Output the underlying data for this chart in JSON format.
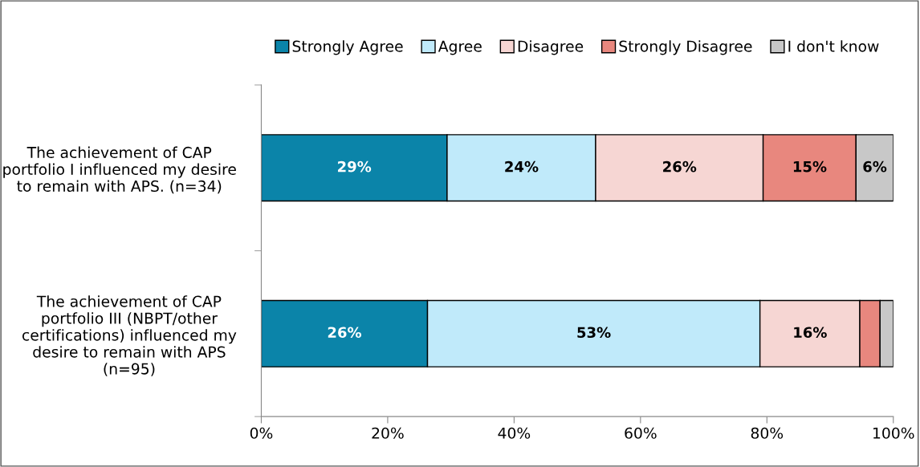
{
  "chart_data": {
    "type": "bar",
    "orientation": "horizontal",
    "stacked": true,
    "categories": [
      "The achievement of CAP portfolio I influenced my desire to remain with APS. (n=34)",
      "The achievement of CAP portfolio III (NBPT/other certifications) influenced my desire to remain with APS (n=95)"
    ],
    "series": [
      {
        "name": "Strongly Agree",
        "color": "#0b84a9",
        "values": [
          29.4,
          26.3
        ],
        "value_labels": [
          "29%",
          "26%"
        ]
      },
      {
        "name": "Agree",
        "color": "#c0eafa",
        "values": [
          23.5,
          52.6
        ],
        "value_labels": [
          "24%",
          "53%"
        ]
      },
      {
        "name": "Disagree",
        "color": "#f6d6d3",
        "values": [
          26.5,
          15.8
        ],
        "value_labels": [
          "26%",
          "16%"
        ]
      },
      {
        "name": "Strongly Disagree",
        "color": "#e8877e",
        "values": [
          14.7,
          3.2
        ],
        "value_labels": [
          "15%",
          null
        ]
      },
      {
        "name": "I don't know",
        "color": "#c8c8c8",
        "values": [
          5.9,
          2.1
        ],
        "value_labels": [
          "6%",
          null
        ]
      }
    ],
    "xlim": [
      0,
      100
    ],
    "xticks": [
      {
        "value": 0,
        "label": "0%"
      },
      {
        "value": 20,
        "label": "20%"
      },
      {
        "value": 40,
        "label": "40%"
      },
      {
        "value": 60,
        "label": "60%"
      },
      {
        "value": 80,
        "label": "80%"
      },
      {
        "value": 100,
        "label": "100%"
      }
    ],
    "legend": "top",
    "grid": false
  }
}
